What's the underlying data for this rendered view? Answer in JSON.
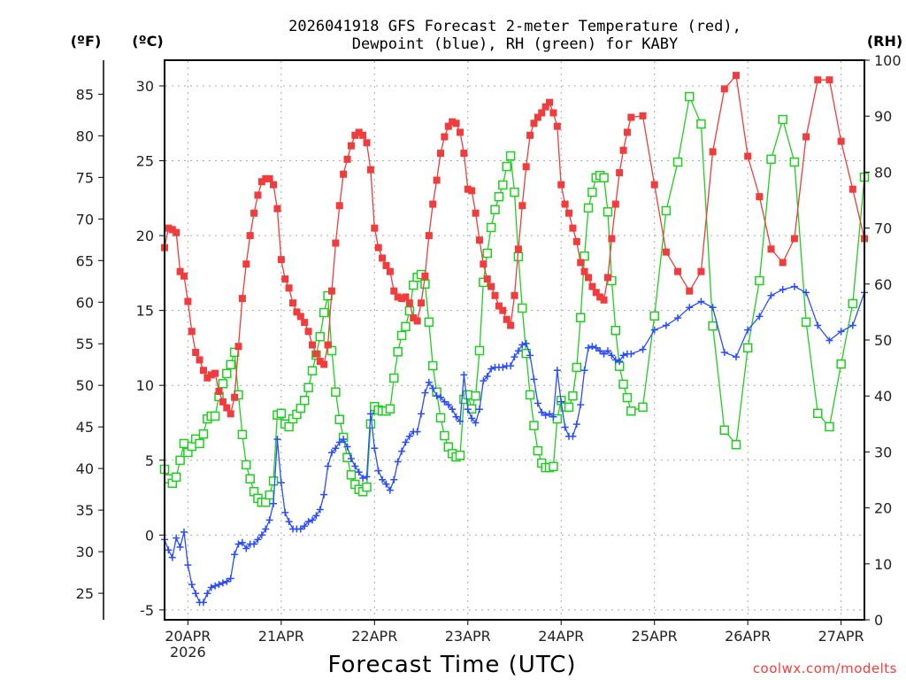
{
  "chart_data": {
    "type": "line",
    "title_lines": [
      "2026041918 GFS Forecast 2-meter Temperature (red),",
      "Dewpoint (blue), RH (green) for KABY"
    ],
    "xlabel": "Forecast Time (UTC)",
    "x_unit": "forecast hours from 2026-04-19 18Z",
    "xlim_hours": [
      0,
      180
    ],
    "x_ticks": [
      {
        "hour": 6,
        "label": "20APR",
        "sublabel": "2026"
      },
      {
        "hour": 30,
        "label": "21APR"
      },
      {
        "hour": 54,
        "label": "22APR"
      },
      {
        "hour": 78,
        "label": "23APR"
      },
      {
        "hour": 102,
        "label": "24APR"
      },
      {
        "hour": 126,
        "label": "25APR"
      },
      {
        "hour": 150,
        "label": "26APR"
      },
      {
        "hour": 174,
        "label": "27APR"
      }
    ],
    "left_axis_f": {
      "unit_label": "(ºF)",
      "ticks": [
        "25",
        "30",
        "35",
        "40",
        "45",
        "50",
        "55",
        "60",
        "65",
        "70",
        "75",
        "80",
        "85"
      ]
    },
    "left_axis_c": {
      "unit_label": "(ºC)",
      "ylim": [
        -5.5,
        31.7
      ],
      "ticks": [
        "-5",
        "0",
        "5",
        "10",
        "15",
        "20",
        "25",
        "30"
      ]
    },
    "right_axis_rh": {
      "unit_label": "(RH)",
      "ylim": [
        0,
        100
      ],
      "ticks": [
        "0",
        "10",
        "20",
        "30",
        "40",
        "50",
        "60",
        "70",
        "80",
        "90",
        "100"
      ]
    },
    "grid": true,
    "x_hours_note": "hourly values for hours 0-120, then 3-hourly for hours 123-180",
    "series": [
      {
        "name": "Temperature",
        "unit": "C",
        "color": "#f03c3c",
        "marker": "filled-square",
        "hourly": [
          19.2,
          20.5,
          20.4,
          20.2,
          17.6,
          17.3,
          15.6,
          13.6,
          12.2,
          11.7,
          11.0,
          10.5,
          10.7,
          10.8,
          9.6,
          8.9,
          8.5,
          8.1,
          9.2,
          12.6,
          15.8,
          18.1,
          20.0,
          21.5,
          22.7,
          23.6,
          23.8,
          23.8,
          23.4,
          21.8,
          18.4,
          17.1,
          16.5,
          15.5,
          14.9,
          14.6,
          14.2,
          13.6,
          12.7,
          12.1,
          11.6,
          11.4,
          12.7,
          16.3,
          19.5,
          22.0,
          24.1,
          25.1,
          26.0,
          26.7,
          26.9,
          26.7,
          26.2,
          24.4,
          20.5,
          19.2,
          18.5,
          18.0,
          17.6,
          16.3,
          15.9,
          15.8,
          15.9,
          15.5,
          14.5,
          14.3,
          15.5,
          17.3,
          20.0,
          22.1,
          23.7,
          25.5,
          26.6,
          27.3,
          27.6,
          27.5,
          26.9,
          25.5,
          23.1,
          23.0,
          21.5,
          19.7,
          18.1,
          17.1,
          16.6,
          16.0,
          15.3,
          15.0,
          14.4,
          14.0,
          16.0,
          19.1,
          22.0,
          24.6,
          26.7,
          27.5,
          27.9,
          28.2,
          28.6,
          28.9,
          28.2,
          27.3,
          23.4,
          22.1,
          21.5,
          20.5,
          19.6,
          18.2,
          17.6,
          17.2,
          16.6,
          16.2,
          15.9,
          15.7,
          17.2,
          19.8,
          22.1,
          24.2,
          25.7,
          26.9,
          27.9
        ],
        "three_hourly": [
          28.0,
          23.4,
          18.9,
          17.6,
          16.3,
          17.6,
          25.6,
          29.8,
          30.7,
          25.3,
          22.6,
          19.1,
          18.2,
          19.8,
          26.6,
          30.4,
          30.4,
          26.3,
          23.1,
          19.8
        ]
      },
      {
        "name": "Dewpoint",
        "unit": "C",
        "color": "#2a4cff",
        "marker": "plus",
        "hourly": [
          -0.3,
          -1.0,
          -1.5,
          -0.2,
          -0.8,
          0.2,
          -2.0,
          -3.3,
          -3.9,
          -4.5,
          -4.5,
          -3.9,
          -3.5,
          -3.4,
          -3.3,
          -3.2,
          -3.1,
          -2.9,
          -1.3,
          -0.6,
          -0.5,
          -0.9,
          -0.6,
          -0.6,
          -0.3,
          0.0,
          0.4,
          1.0,
          2.1,
          6.4,
          3.5,
          1.5,
          0.9,
          0.4,
          0.4,
          0.4,
          0.6,
          0.9,
          1.0,
          1.3,
          1.7,
          2.7,
          4.6,
          5.5,
          5.8,
          6.2,
          6.4,
          5.9,
          5.1,
          4.6,
          4.2,
          3.8,
          3.9,
          8.1,
          5.8,
          4.3,
          3.7,
          3.4,
          3.0,
          3.7,
          4.9,
          5.6,
          6.2,
          6.6,
          6.9,
          6.9,
          8.1,
          9.5,
          10.2,
          9.8,
          9.3,
          9.2,
          8.9,
          8.7,
          8.4,
          7.9,
          7.6,
          10.7,
          8.4,
          7.8,
          7.5,
          8.4,
          10.3,
          10.6,
          11.1,
          11.2,
          11.2,
          11.2,
          11.3,
          11.3,
          11.9,
          12.3,
          12.7,
          12.8,
          12.0,
          10.4,
          8.8,
          8.2,
          8.0,
          8.1,
          7.9,
          11.0,
          8.9,
          7.2,
          6.6,
          6.6,
          7.4,
          8.7,
          11.0,
          12.5,
          12.6,
          12.5,
          12.3,
          12.1,
          12.3,
          12.0,
          11.7,
          11.6,
          12.0,
          12.1,
          12.1
        ],
        "three_hourly": [
          12.4,
          13.7,
          14.0,
          14.5,
          15.2,
          15.6,
          15.2,
          12.2,
          11.9,
          13.7,
          14.6,
          16.0,
          16.4,
          16.6,
          16.2,
          14.0,
          13.0,
          13.6,
          14.0,
          16.2
        ]
      },
      {
        "name": "RH",
        "unit": "%",
        "color": "#1ed01e",
        "marker": "hollow-square",
        "hourly": [
          26.9,
          25.2,
          24.4,
          25.5,
          28.5,
          31.5,
          29.9,
          31.0,
          32.3,
          31.5,
          33.2,
          35.9,
          36.4,
          36.4,
          39.9,
          42.2,
          44.0,
          45.6,
          47.8,
          40.2,
          33.1,
          27.7,
          25.2,
          22.9,
          21.7,
          21.0,
          21.0,
          22.3,
          24.8,
          36.6,
          36.9,
          35.0,
          34.5,
          35.9,
          36.7,
          37.8,
          39.2,
          41.5,
          44.5,
          47.3,
          50.6,
          54.9,
          57.9,
          48.1,
          40.7,
          35.8,
          32.6,
          29.0,
          25.9,
          24.2,
          23.3,
          22.9,
          23.7,
          35.0,
          38.1,
          37.5,
          37.3,
          37.3,
          37.7,
          43.2,
          47.9,
          50.8,
          52.4,
          55.2,
          59.8,
          61.2,
          61.7,
          60.0,
          53.2,
          45.4,
          40.7,
          36.1,
          32.9,
          30.9,
          29.7,
          29.1,
          29.4,
          39.4,
          40.2,
          37.7,
          40.0,
          48.1,
          60.3,
          65.5,
          70.1,
          73.3,
          75.6,
          77.7,
          81.0,
          82.9,
          76.4,
          64.9,
          55.7,
          47.6,
          40.2,
          34.7,
          30.2,
          28.0,
          27.2,
          27.2,
          27.4,
          35.9,
          39.2,
          38.0,
          38.0,
          40.0,
          45.1,
          54.0,
          65.0,
          73.6,
          76.4,
          79.0,
          79.4,
          79.0,
          72.9,
          60.6,
          51.7,
          45.3,
          42.1,
          39.7,
          37.3
        ],
        "three_hourly": [
          38.0,
          54.3,
          73.1,
          81.8,
          93.5,
          88.6,
          52.5,
          33.9,
          31.3,
          48.6,
          60.6,
          82.3,
          89.4,
          81.8,
          53.2,
          36.9,
          34.5,
          45.7,
          56.5,
          79.1
        ]
      }
    ]
  },
  "credit": "coolwx.com/modelts"
}
